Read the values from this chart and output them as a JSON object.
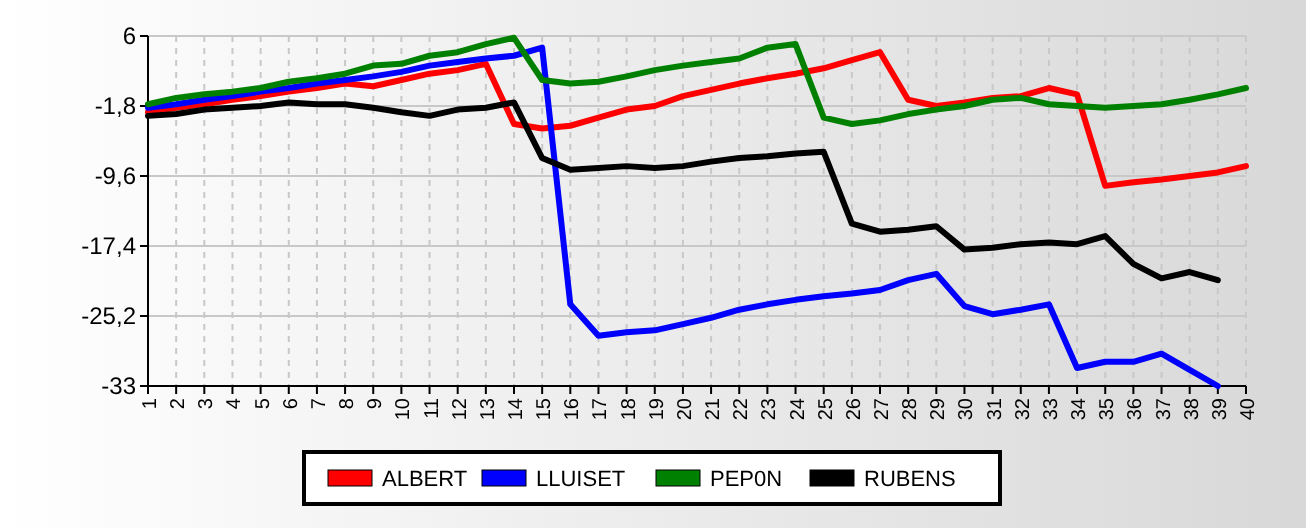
{
  "chart_data": {
    "type": "line",
    "categories": [
      "1",
      "2",
      "3",
      "4",
      "5",
      "6",
      "7",
      "8",
      "9",
      "10",
      "11",
      "12",
      "13",
      "14",
      "15",
      "16",
      "17",
      "18",
      "19",
      "20",
      "21",
      "22",
      "23",
      "24",
      "25",
      "26",
      "27",
      "28",
      "29",
      "30",
      "31",
      "32",
      "33",
      "34",
      "35",
      "36",
      "37",
      "38",
      "39",
      "40"
    ],
    "series": [
      {
        "name": "ALBERT",
        "color": "#ff0000",
        "values": [
          -2.5,
          -2.0,
          -1.6,
          -1.1,
          -0.7,
          -0.2,
          0.2,
          0.7,
          0.4,
          1.1,
          1.8,
          2.2,
          2.9,
          -3.8,
          -4.3,
          -4.0,
          -3.1,
          -2.2,
          -1.8,
          -0.7,
          0.0,
          0.7,
          1.3,
          1.8,
          2.4,
          3.3,
          4.2,
          -1.1,
          -1.8,
          -1.4,
          -0.9,
          -0.7,
          0.2,
          -0.5,
          -10.7,
          -10.3,
          -10.0,
          -9.6,
          -9.2,
          -8.5
        ]
      },
      {
        "name": "LLUISET",
        "color": "#0000ff",
        "values": [
          -2.0,
          -1.6,
          -1.1,
          -0.7,
          -0.2,
          0.2,
          0.7,
          1.1,
          1.5,
          2.0,
          2.7,
          3.1,
          3.5,
          3.8,
          4.7,
          -23.9,
          -27.4,
          -27.0,
          -26.8,
          -26.1,
          -25.4,
          -24.5,
          -23.9,
          -23.4,
          -23.0,
          -22.7,
          -22.3,
          -21.2,
          -20.5,
          -24.1,
          -25.0,
          -24.5,
          -23.9,
          -31.0,
          -30.3,
          -30.3,
          -29.4,
          -31.2,
          -33.0,
          null
        ]
      },
      {
        "name": "PEP0N",
        "color": "#008000",
        "values": [
          -1.6,
          -0.9,
          -0.5,
          -0.2,
          0.2,
          0.9,
          1.3,
          1.8,
          2.7,
          2.9,
          3.8,
          4.2,
          5.1,
          5.8,
          1.1,
          0.7,
          0.9,
          1.5,
          2.2,
          2.7,
          3.1,
          3.5,
          4.7,
          5.1,
          -3.1,
          -3.8,
          -3.4,
          -2.7,
          -2.2,
          -1.8,
          -1.1,
          -0.9,
          -1.6,
          -1.8,
          -2.0,
          -1.8,
          -1.6,
          -1.1,
          -0.5,
          0.2
        ]
      },
      {
        "name": "RUBENS",
        "color": "#000000",
        "values": [
          -2.9,
          -2.7,
          -2.2,
          -2.0,
          -1.8,
          -1.4,
          -1.6,
          -1.6,
          -2.0,
          -2.5,
          -2.9,
          -2.2,
          -2.0,
          -1.4,
          -7.6,
          -8.9,
          -8.7,
          -8.5,
          -8.7,
          -8.5,
          -8.0,
          -7.6,
          -7.4,
          -7.1,
          -6.9,
          -14.9,
          -15.8,
          -15.6,
          -15.2,
          -17.8,
          -17.6,
          -17.2,
          -17.0,
          -17.2,
          -16.3,
          -19.4,
          -21.0,
          -20.3,
          -21.2,
          null
        ]
      }
    ],
    "ylim": [
      -33,
      6
    ],
    "yticks": [
      6,
      {
        "value": -1.8,
        "label": "-1,8"
      },
      {
        "value": -9.6,
        "label": "-9,6"
      },
      {
        "value": -17.4,
        "label": "-17,4"
      },
      {
        "value": -25.2,
        "label": "-25,2"
      },
      -33
    ],
    "grid": true,
    "legend": "bottom",
    "marker": "none",
    "line_style": "solid"
  }
}
